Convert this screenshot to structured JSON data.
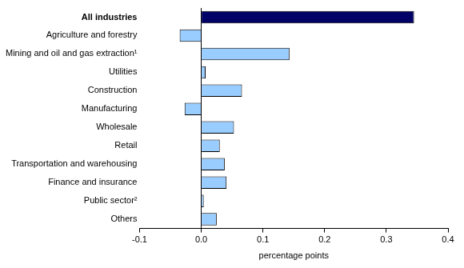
{
  "chart_data": {
    "type": "bar",
    "orientation": "horizontal",
    "x_label": "percentage points",
    "categories": [
      "All industries",
      "Agriculture and forestry",
      "Mining and oil and gas extraction¹",
      "Utilities",
      "Construction",
      "Manufacturing",
      "Wholesale",
      "Retail",
      "Transportation and warehousing",
      "Finance and insurance",
      "Public sector²",
      "Others"
    ],
    "values": [
      0.345,
      -0.035,
      0.143,
      0.007,
      0.066,
      -0.027,
      0.053,
      0.03,
      0.038,
      0.041,
      0.004,
      0.025
    ],
    "colors": [
      "#000066",
      "#99ccff",
      "#99ccff",
      "#99ccff",
      "#99ccff",
      "#99ccff",
      "#99ccff",
      "#99ccff",
      "#99ccff",
      "#99ccff",
      "#99ccff",
      "#99ccff"
    ],
    "xlim": [
      -0.1,
      0.4
    ],
    "xticks": [
      -0.1,
      {
        "value": 0,
        "label": "0.0"
      },
      0.1,
      0.2,
      0.3,
      0.4
    ],
    "grid": false
  }
}
